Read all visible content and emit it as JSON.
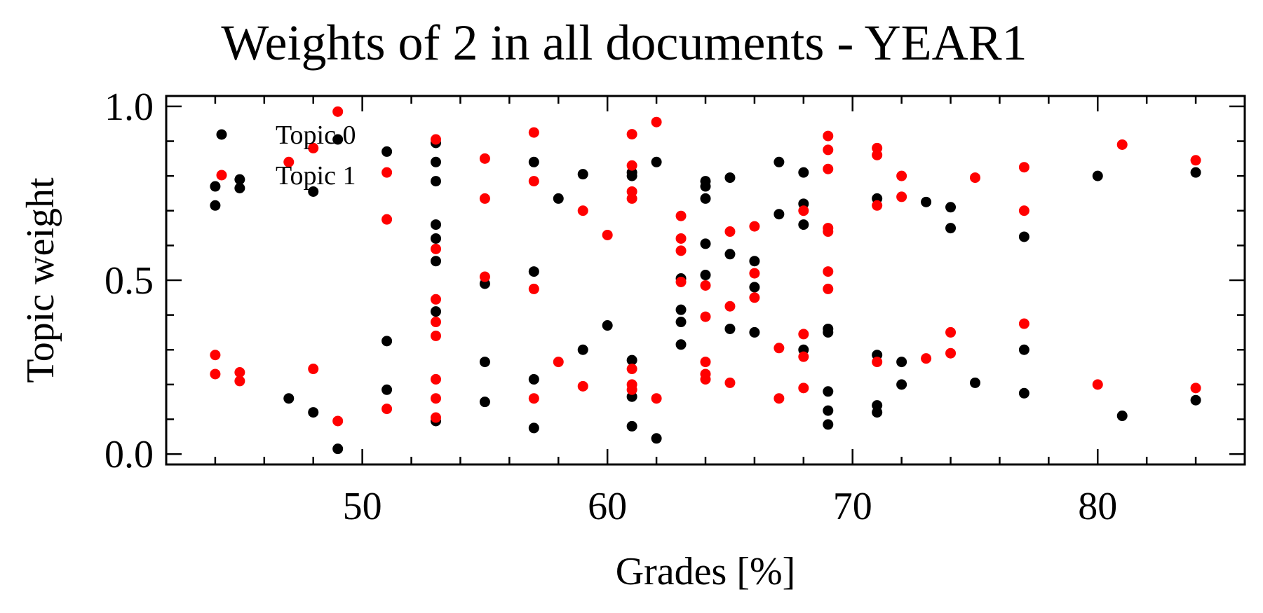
{
  "chart_data": {
    "type": "scatter",
    "title": "Weights of 2 in all documents - YEAR1",
    "xlabel": "Grades [%]",
    "ylabel": "Topic weight",
    "xlim": [
      42,
      86
    ],
    "ylim": [
      -0.03,
      1.03
    ],
    "xticks": [
      50,
      60,
      70,
      80
    ],
    "yticks": [
      0.0,
      0.5,
      1.0
    ],
    "ytick_labels": [
      "0.0",
      "0.5",
      "1.0"
    ],
    "legend_position": "top-left",
    "series": [
      {
        "name": "Topic 0",
        "color": "#000000",
        "points": [
          [
            44,
            0.77
          ],
          [
            44,
            0.715
          ],
          [
            45,
            0.79
          ],
          [
            45,
            0.765
          ],
          [
            47,
            0.16
          ],
          [
            48,
            0.755
          ],
          [
            48,
            0.12
          ],
          [
            49,
            0.905
          ],
          [
            49,
            0.015
          ],
          [
            51,
            0.87
          ],
          [
            51,
            0.325
          ],
          [
            51,
            0.185
          ],
          [
            53,
            0.895
          ],
          [
            53,
            0.84
          ],
          [
            53,
            0.785
          ],
          [
            53,
            0.66
          ],
          [
            53,
            0.62
          ],
          [
            53,
            0.555
          ],
          [
            53,
            0.41
          ],
          [
            53,
            0.095
          ],
          [
            55,
            0.49
          ],
          [
            55,
            0.265
          ],
          [
            55,
            0.15
          ],
          [
            57,
            0.84
          ],
          [
            57,
            0.525
          ],
          [
            57,
            0.215
          ],
          [
            57,
            0.075
          ],
          [
            58,
            0.735
          ],
          [
            59,
            0.805
          ],
          [
            59,
            0.3
          ],
          [
            60,
            0.37
          ],
          [
            61,
            0.81
          ],
          [
            61,
            0.8
          ],
          [
            61,
            0.27
          ],
          [
            61,
            0.165
          ],
          [
            61,
            0.08
          ],
          [
            62,
            0.84
          ],
          [
            62,
            0.045
          ],
          [
            63,
            0.505
          ],
          [
            63,
            0.415
          ],
          [
            63,
            0.38
          ],
          [
            63,
            0.315
          ],
          [
            64,
            0.785
          ],
          [
            64,
            0.77
          ],
          [
            64,
            0.735
          ],
          [
            64,
            0.605
          ],
          [
            64,
            0.515
          ],
          [
            65,
            0.795
          ],
          [
            65,
            0.575
          ],
          [
            65,
            0.36
          ],
          [
            66,
            0.555
          ],
          [
            66,
            0.48
          ],
          [
            66,
            0.35
          ],
          [
            67,
            0.84
          ],
          [
            67,
            0.69
          ],
          [
            68,
            0.81
          ],
          [
            68,
            0.72
          ],
          [
            68,
            0.66
          ],
          [
            68,
            0.3
          ],
          [
            69,
            0.36
          ],
          [
            69,
            0.35
          ],
          [
            69,
            0.18
          ],
          [
            69,
            0.125
          ],
          [
            69,
            0.085
          ],
          [
            71,
            0.735
          ],
          [
            71,
            0.285
          ],
          [
            71,
            0.14
          ],
          [
            71,
            0.12
          ],
          [
            72,
            0.265
          ],
          [
            72,
            0.2
          ],
          [
            73,
            0.725
          ],
          [
            74,
            0.71
          ],
          [
            74,
            0.65
          ],
          [
            75,
            0.205
          ],
          [
            77,
            0.625
          ],
          [
            77,
            0.3
          ],
          [
            77,
            0.175
          ],
          [
            80,
            0.8
          ],
          [
            81,
            0.11
          ],
          [
            84,
            0.81
          ],
          [
            84,
            0.155
          ]
        ]
      },
      {
        "name": "Topic 1",
        "color": "#ff0000",
        "points": [
          [
            44,
            0.285
          ],
          [
            44,
            0.23
          ],
          [
            45,
            0.235
          ],
          [
            45,
            0.21
          ],
          [
            47,
            0.84
          ],
          [
            48,
            0.88
          ],
          [
            48,
            0.245
          ],
          [
            49,
            0.985
          ],
          [
            49,
            0.095
          ],
          [
            51,
            0.81
          ],
          [
            51,
            0.675
          ],
          [
            51,
            0.13
          ],
          [
            53,
            0.905
          ],
          [
            53,
            0.59
          ],
          [
            53,
            0.445
          ],
          [
            53,
            0.38
          ],
          [
            53,
            0.34
          ],
          [
            53,
            0.215
          ],
          [
            53,
            0.16
          ],
          [
            53,
            0.105
          ],
          [
            55,
            0.85
          ],
          [
            55,
            0.735
          ],
          [
            55,
            0.51
          ],
          [
            57,
            0.925
          ],
          [
            57,
            0.785
          ],
          [
            57,
            0.475
          ],
          [
            57,
            0.16
          ],
          [
            58,
            0.265
          ],
          [
            59,
            0.7
          ],
          [
            59,
            0.195
          ],
          [
            60,
            0.63
          ],
          [
            61,
            0.92
          ],
          [
            61,
            0.83
          ],
          [
            61,
            0.755
          ],
          [
            61,
            0.735
          ],
          [
            61,
            0.245
          ],
          [
            61,
            0.2
          ],
          [
            61,
            0.185
          ],
          [
            62,
            0.955
          ],
          [
            62,
            0.16
          ],
          [
            63,
            0.685
          ],
          [
            63,
            0.62
          ],
          [
            63,
            0.585
          ],
          [
            63,
            0.495
          ],
          [
            64,
            0.485
          ],
          [
            64,
            0.395
          ],
          [
            64,
            0.265
          ],
          [
            64,
            0.23
          ],
          [
            64,
            0.215
          ],
          [
            65,
            0.64
          ],
          [
            65,
            0.425
          ],
          [
            65,
            0.205
          ],
          [
            66,
            0.655
          ],
          [
            66,
            0.52
          ],
          [
            66,
            0.45
          ],
          [
            67,
            0.305
          ],
          [
            67,
            0.16
          ],
          [
            68,
            0.7
          ],
          [
            68,
            0.345
          ],
          [
            68,
            0.28
          ],
          [
            68,
            0.19
          ],
          [
            69,
            0.915
          ],
          [
            69,
            0.875
          ],
          [
            69,
            0.82
          ],
          [
            69,
            0.65
          ],
          [
            69,
            0.64
          ],
          [
            69,
            0.525
          ],
          [
            69,
            0.475
          ],
          [
            71,
            0.88
          ],
          [
            71,
            0.86
          ],
          [
            71,
            0.715
          ],
          [
            71,
            0.265
          ],
          [
            72,
            0.8
          ],
          [
            72,
            0.74
          ],
          [
            73,
            0.275
          ],
          [
            74,
            0.35
          ],
          [
            74,
            0.29
          ],
          [
            75,
            0.795
          ],
          [
            77,
            0.825
          ],
          [
            77,
            0.7
          ],
          [
            77,
            0.375
          ],
          [
            80,
            0.2
          ],
          [
            81,
            0.89
          ],
          [
            84,
            0.845
          ],
          [
            84,
            0.19
          ]
        ]
      }
    ]
  }
}
